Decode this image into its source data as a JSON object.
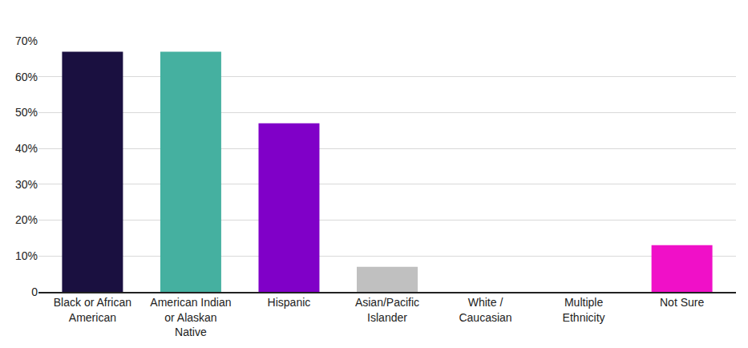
{
  "chart_data": {
    "type": "bar",
    "categories": [
      "Black or African American",
      "American Indian or Alaskan Native",
      "Hispanic",
      "Asian/Pacific Islander",
      "White / Caucasian",
      "Multiple Ethnicity",
      "Not Sure"
    ],
    "values": [
      67,
      67,
      47,
      7,
      0,
      0,
      13
    ],
    "colors": [
      "#1a1040",
      "#45b0a0",
      "#8000c8",
      "#c0c0c0",
      "#c0c0c0",
      "#c0c0c0",
      "#f010c8"
    ],
    "ylim": [
      0,
      70
    ],
    "yticks": [
      0,
      {
        "value": 10,
        "label": "10%"
      },
      {
        "value": 20,
        "label": "20%"
      },
      {
        "value": 30,
        "label": "30%"
      },
      {
        "value": 40,
        "label": "40%"
      },
      {
        "value": 50,
        "label": "50%"
      },
      {
        "value": 60,
        "label": "60%"
      },
      {
        "value": 70,
        "label": "70%"
      }
    ],
    "grid": true
  }
}
